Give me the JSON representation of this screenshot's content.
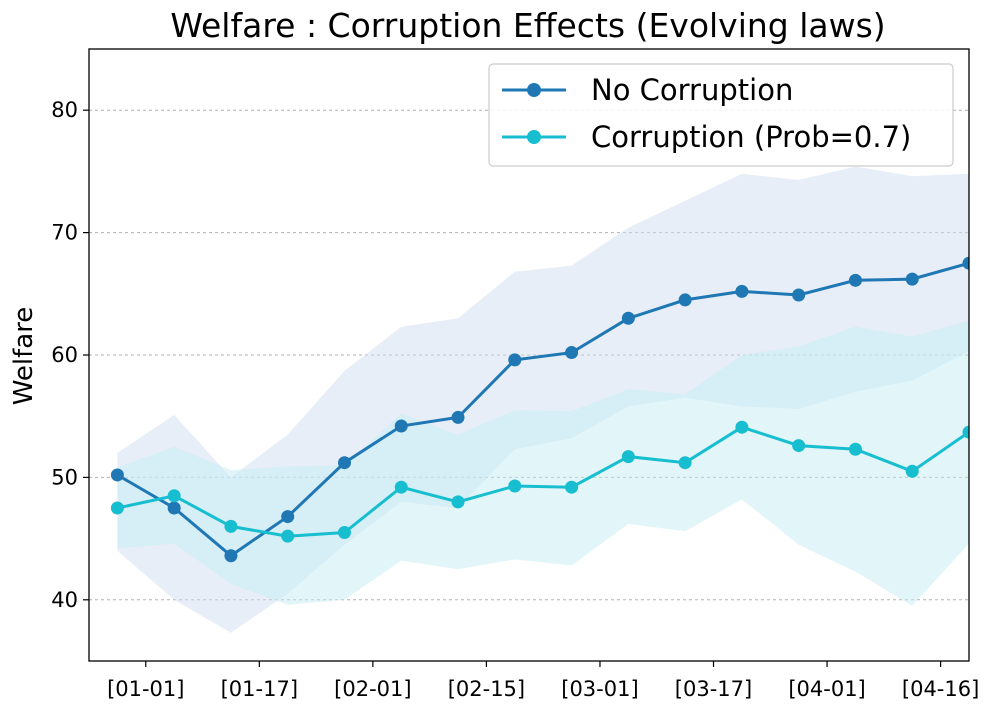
{
  "chart_data": {
    "type": "line",
    "title": "Welfare : Corruption Effects  (Evolving laws)",
    "xlabel": "",
    "ylabel": "Welfare",
    "ylim": [
      35,
      85
    ],
    "yticks": [
      40,
      50,
      60,
      70,
      80
    ],
    "xlim": [
      -0.5,
      15.0
    ],
    "x_tick_positions": [
      0.5,
      2.5,
      4.5,
      6.5,
      8.5,
      10.5,
      12.5,
      14.5
    ],
    "x_tick_labels": [
      "[01-01]",
      "[01-17]",
      "[02-01]",
      "[02-15]",
      "[03-01]",
      "[03-17]",
      "[04-01]",
      "[04-16]"
    ],
    "grid": "horizontal dashed",
    "legend": {
      "position": "top-right"
    },
    "x": [
      0,
      1,
      2,
      3,
      4,
      5,
      6,
      7,
      8,
      9,
      10,
      11,
      12,
      13,
      14,
      15
    ],
    "series": [
      {
        "name": "No Corruption",
        "color": "#1f77b4",
        "band_color": "#d0deef",
        "values": [
          50.2,
          47.5,
          43.6,
          46.8,
          51.2,
          54.2,
          54.9,
          59.6,
          60.2,
          63.0,
          64.5,
          65.2,
          64.9,
          66.1,
          66.2,
          67.5
        ],
        "lower": [
          44.0,
          40.0,
          37.3,
          40.5,
          44.5,
          48.0,
          47.5,
          52.3,
          53.2,
          55.8,
          56.5,
          55.8,
          55.6,
          57.0,
          57.9,
          60.3
        ],
        "upper": [
          52.0,
          55.1,
          50.0,
          53.5,
          58.7,
          62.3,
          63.0,
          66.8,
          67.3,
          70.4,
          72.6,
          74.8,
          74.3,
          75.4,
          74.6,
          74.8
        ]
      },
      {
        "name": "Corruption (Prob=0.7)",
        "color": "#17becf",
        "band_color": "#c5eef3",
        "values": [
          47.5,
          48.5,
          46.0,
          45.2,
          45.5,
          49.2,
          48.0,
          49.3,
          49.2,
          51.7,
          51.2,
          54.1,
          52.6,
          52.3,
          50.5,
          53.7
        ],
        "lower": [
          44.2,
          44.6,
          41.3,
          39.6,
          40.0,
          43.2,
          42.5,
          43.3,
          42.8,
          46.2,
          45.6,
          48.2,
          44.5,
          42.3,
          39.5,
          44.6
        ],
        "upper": [
          50.8,
          52.5,
          50.6,
          50.9,
          51.0,
          55.2,
          53.5,
          55.5,
          55.4,
          57.2,
          56.8,
          60.0,
          60.7,
          62.3,
          61.5,
          62.8
        ]
      }
    ]
  }
}
